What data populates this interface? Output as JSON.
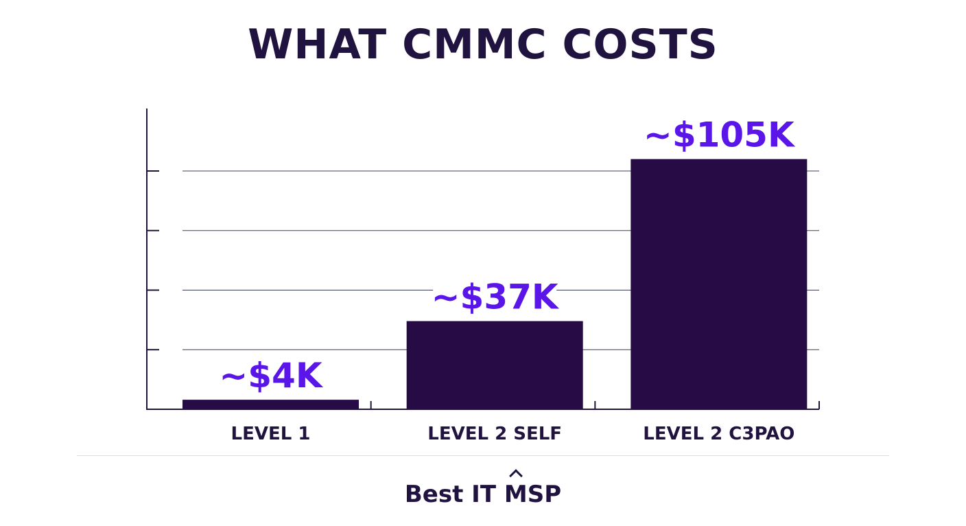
{
  "chart_data": {
    "type": "bar",
    "title": "WHAT CMMC COSTS",
    "categories": [
      "LEVEL 1",
      "LEVEL 2 SELF",
      "LEVEL 2 C3PAO"
    ],
    "values": [
      4,
      37,
      105
    ],
    "value_labels": [
      "~$4K",
      "~$37K",
      "~$105K"
    ],
    "unit": "$K",
    "ylim": [
      0,
      120
    ],
    "grid": true,
    "legend": "none",
    "bar_color": "#260b45",
    "label_color": "#5a16e8",
    "axis_color": "#21133f"
  },
  "footer": {
    "logo_text_left": "Best IT ",
    "logo_text_m": "M",
    "logo_text_right": "SP"
  }
}
